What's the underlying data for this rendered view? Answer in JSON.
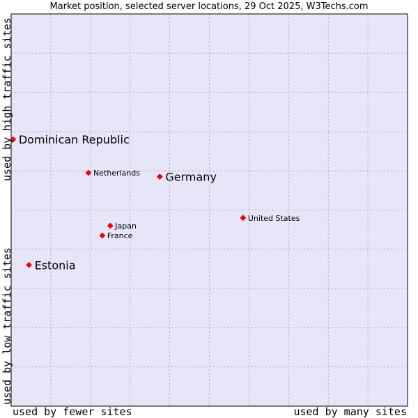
{
  "chart_data": {
    "type": "scatter",
    "title": "Market position, selected server locations, 29 Oct 2025, W3Techs.com",
    "xlabel_low": "used by fewer sites",
    "xlabel_high": "used by many sites",
    "ylabel_low": "used by low traffic sites",
    "ylabel_high": "used by high traffic sites",
    "xlim": [
      0,
      10
    ],
    "ylim": [
      0,
      10
    ],
    "grid": true,
    "colors": {
      "plot_bg": "#e6e6f8",
      "grid": "#9a9aaa",
      "point": "#ff0000",
      "border": "#000000"
    },
    "points": [
      {
        "name": "Dominican Republic",
        "x": 0.05,
        "y": 6.8,
        "highlight": true
      },
      {
        "name": "Netherlands",
        "x": 1.95,
        "y": 5.95,
        "highlight": false
      },
      {
        "name": "Germany",
        "x": 3.75,
        "y": 5.85,
        "highlight": true
      },
      {
        "name": "United States",
        "x": 5.85,
        "y": 4.8,
        "highlight": false
      },
      {
        "name": "Japan",
        "x": 2.5,
        "y": 4.6,
        "highlight": false
      },
      {
        "name": "France",
        "x": 2.3,
        "y": 4.35,
        "highlight": false
      },
      {
        "name": "Estonia",
        "x": 0.45,
        "y": 3.6,
        "highlight": true
      }
    ]
  }
}
